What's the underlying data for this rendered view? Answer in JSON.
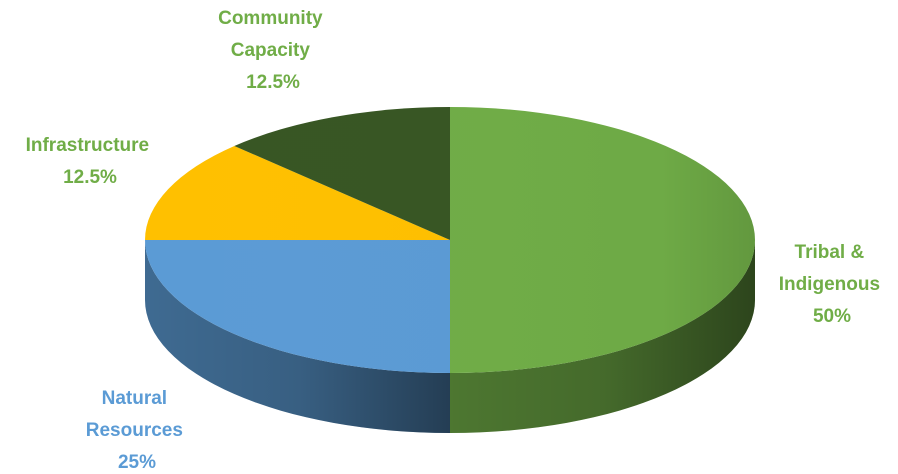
{
  "chart_data": {
    "type": "pie",
    "style": "3d",
    "title": "",
    "slices": [
      {
        "label": "Tribal & Indigenous",
        "value": 50,
        "percent_label": "50%",
        "color": "#70AD47",
        "label_color": "#70AD47"
      },
      {
        "label": "Natural Resources",
        "value": 25,
        "percent_label": "25%",
        "color": "#5B9BD5",
        "label_color": "#5B9BD5"
      },
      {
        "label": "Infrastructure",
        "value": 12.5,
        "percent_label": "12.5%",
        "color": "#FFC000",
        "label_color": "#70AD47"
      },
      {
        "label": "Community Capacity",
        "value": 12.5,
        "percent_label": "12.5%",
        "color": "#375623",
        "label_color": "#70AD47"
      }
    ],
    "legend": "none"
  }
}
